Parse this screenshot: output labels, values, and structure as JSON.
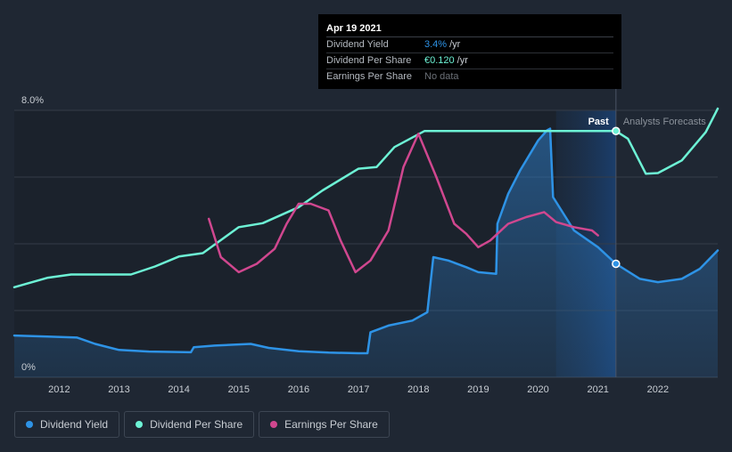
{
  "tooltip": {
    "date": "Apr 19 2021",
    "rows": [
      {
        "label": "Dividend Yield",
        "value": "3.4%",
        "unit": "/yr",
        "color": "#2e93e6"
      },
      {
        "label": "Dividend Per Share",
        "value": "€0.120",
        "unit": "/yr",
        "color": "#6df2d5"
      },
      {
        "label": "Earnings Per Share",
        "value": "No data",
        "unit": "",
        "color": "#6c7178"
      }
    ]
  },
  "regions": {
    "past_label": "Past",
    "forecast_label": "Analysts Forecasts"
  },
  "legend": [
    {
      "label": "Dividend Yield",
      "color": "#2e93e6"
    },
    {
      "label": "Dividend Per Share",
      "color": "#6df2d5"
    },
    {
      "label": "Earnings Per Share",
      "color": "#d0478f"
    }
  ],
  "chart_data": {
    "type": "line",
    "x_ticks": [
      2012,
      2013,
      2014,
      2015,
      2016,
      2017,
      2018,
      2019,
      2020,
      2021,
      2022
    ],
    "xlim": [
      2011.25,
      2023.0
    ],
    "ylim": [
      0,
      8.0
    ],
    "y_ticks_labels": [
      {
        "value": 8.0,
        "label": "8.0%"
      },
      {
        "value": 0,
        "label": "0%"
      }
    ],
    "grid": true,
    "past_end": 2021.3,
    "highlight_start": 2020.3,
    "series": [
      {
        "name": "Dividend Yield",
        "color": "#2e93e6",
        "fill": true,
        "points": [
          [
            2011.25,
            1.25
          ],
          [
            2011.8,
            1.22
          ],
          [
            2012.3,
            1.19
          ],
          [
            2012.6,
            1.0
          ],
          [
            2013.0,
            0.82
          ],
          [
            2013.5,
            0.77
          ],
          [
            2014.2,
            0.75
          ],
          [
            2014.25,
            0.9
          ],
          [
            2014.6,
            0.95
          ],
          [
            2015.2,
            1.0
          ],
          [
            2015.5,
            0.88
          ],
          [
            2016.0,
            0.78
          ],
          [
            2016.5,
            0.74
          ],
          [
            2017.0,
            0.72
          ],
          [
            2017.15,
            0.72
          ],
          [
            2017.2,
            1.35
          ],
          [
            2017.5,
            1.55
          ],
          [
            2017.9,
            1.7
          ],
          [
            2018.15,
            1.95
          ],
          [
            2018.25,
            3.6
          ],
          [
            2018.5,
            3.5
          ],
          [
            2018.8,
            3.3
          ],
          [
            2019.0,
            3.15
          ],
          [
            2019.3,
            3.1
          ],
          [
            2019.32,
            4.6
          ],
          [
            2019.5,
            5.5
          ],
          [
            2019.7,
            6.2
          ],
          [
            2020.0,
            7.1
          ],
          [
            2020.15,
            7.4
          ],
          [
            2020.2,
            7.45
          ],
          [
            2020.25,
            5.4
          ],
          [
            2020.6,
            4.4
          ],
          [
            2021.0,
            3.9
          ],
          [
            2021.3,
            3.4
          ],
          [
            2021.7,
            2.95
          ],
          [
            2022.0,
            2.85
          ],
          [
            2022.4,
            2.95
          ],
          [
            2022.7,
            3.25
          ],
          [
            2023.0,
            3.8
          ]
        ]
      },
      {
        "name": "Dividend Per Share",
        "color": "#6df2d5",
        "fill": false,
        "points": [
          [
            2011.25,
            2.7
          ],
          [
            2011.8,
            2.98
          ],
          [
            2012.2,
            3.08
          ],
          [
            2013.2,
            3.08
          ],
          [
            2013.6,
            3.32
          ],
          [
            2014.0,
            3.62
          ],
          [
            2014.4,
            3.72
          ],
          [
            2015.0,
            4.5
          ],
          [
            2015.4,
            4.62
          ],
          [
            2016.0,
            5.1
          ],
          [
            2016.4,
            5.6
          ],
          [
            2017.0,
            6.25
          ],
          [
            2017.3,
            6.3
          ],
          [
            2017.6,
            6.9
          ],
          [
            2018.1,
            7.38
          ],
          [
            2019.5,
            7.38
          ],
          [
            2021.3,
            7.38
          ],
          [
            2021.5,
            7.15
          ],
          [
            2021.8,
            6.1
          ],
          [
            2022.0,
            6.12
          ],
          [
            2022.4,
            6.5
          ],
          [
            2022.8,
            7.35
          ],
          [
            2023.0,
            8.05
          ]
        ]
      },
      {
        "name": "Earnings Per Share",
        "color": "#d0478f",
        "fill": false,
        "points": [
          [
            2014.5,
            4.75
          ],
          [
            2014.7,
            3.6
          ],
          [
            2015.0,
            3.15
          ],
          [
            2015.3,
            3.4
          ],
          [
            2015.6,
            3.85
          ],
          [
            2015.8,
            4.6
          ],
          [
            2016.0,
            5.2
          ],
          [
            2016.2,
            5.2
          ],
          [
            2016.5,
            5.0
          ],
          [
            2016.7,
            4.1
          ],
          [
            2016.95,
            3.15
          ],
          [
            2017.2,
            3.5
          ],
          [
            2017.5,
            4.4
          ],
          [
            2017.75,
            6.3
          ],
          [
            2018.0,
            7.3
          ],
          [
            2018.3,
            6.0
          ],
          [
            2018.6,
            4.6
          ],
          [
            2018.8,
            4.3
          ],
          [
            2019.0,
            3.9
          ],
          [
            2019.2,
            4.1
          ],
          [
            2019.5,
            4.6
          ],
          [
            2019.8,
            4.8
          ],
          [
            2020.1,
            4.95
          ],
          [
            2020.3,
            4.65
          ],
          [
            2020.6,
            4.5
          ],
          [
            2020.9,
            4.4
          ],
          [
            2021.0,
            4.25
          ]
        ]
      }
    ],
    "markers": [
      {
        "series": "Dividend Yield",
        "x": 2021.3,
        "y": 3.4
      },
      {
        "series": "Dividend Per Share",
        "x": 2021.3,
        "y": 7.38
      }
    ]
  }
}
